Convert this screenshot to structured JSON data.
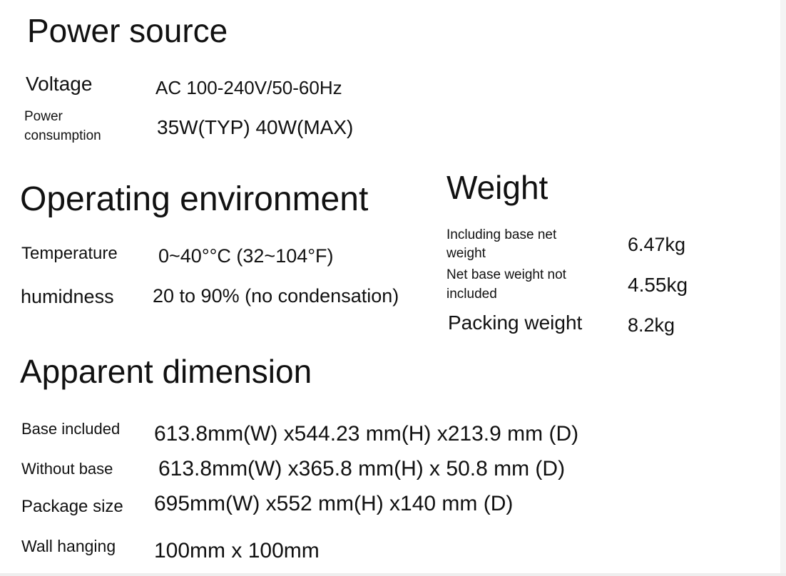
{
  "power": {
    "title": "Power source",
    "voltage_label": "Voltage",
    "voltage_value": "AC 100-240V/50-60Hz",
    "consumption_label_1": "Power",
    "consumption_label_2": "consumption",
    "consumption_value": "35W(TYP) 40W(MAX)"
  },
  "environment": {
    "title": "Operating environment",
    "temperature_label": "Temperature",
    "temperature_value": "0~40°°C (32~104°F)",
    "humidity_label": "humidness",
    "humidity_value": "20 to 90% (no condensation)"
  },
  "weight": {
    "title": "Weight",
    "with_base_label_1": "Including base net",
    "with_base_label_2": "weight",
    "with_base_value": "6.47kg",
    "without_base_label_1": "Net base weight not",
    "without_base_label_2": "included",
    "without_base_value": "4.55kg",
    "packing_label": "Packing weight",
    "packing_value": "8.2kg"
  },
  "dimension": {
    "title": "Apparent dimension",
    "rows": [
      {
        "label": "Base included",
        "value": "613.8mm(W) x544.23 mm(H) x213.9 mm (D)"
      },
      {
        "label": "Without base",
        "value": "613.8mm(W) x365.8 mm(H) x 50.8 mm (D)"
      },
      {
        "label": "Package size",
        "value": "695mm(W) x552 mm(H) x140 mm (D)"
      },
      {
        "label": "Wall hanging",
        "value": "100mm x 100mm"
      }
    ]
  }
}
